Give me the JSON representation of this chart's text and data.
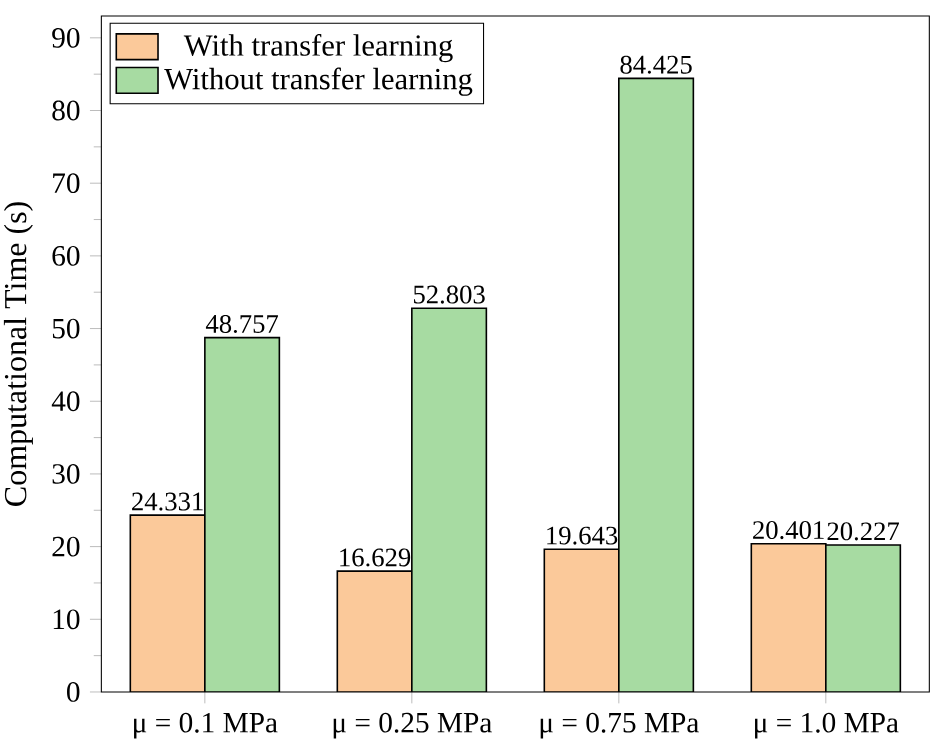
{
  "chart_data": {
    "type": "bar",
    "ylabel": "Computational Time (s)",
    "categories": [
      "μ = 0.1 MPa",
      "μ = 0.25 MPa",
      "μ = 0.75 MPa",
      "μ = 1.0 MPa"
    ],
    "series": [
      {
        "name": "With transfer learning",
        "color": "#fbc99a",
        "values": [
          24.331,
          16.629,
          19.643,
          20.401
        ]
      },
      {
        "name": "Without transfer learning",
        "color": "#a7dba2",
        "values": [
          48.757,
          52.803,
          84.425,
          20.227
        ]
      }
    ],
    "ylim": [
      0,
      93
    ],
    "yticks": [
      0,
      10,
      20,
      30,
      40,
      50,
      60,
      70,
      80,
      90
    ],
    "data_labels": true,
    "legend": "top left",
    "grid": false
  }
}
